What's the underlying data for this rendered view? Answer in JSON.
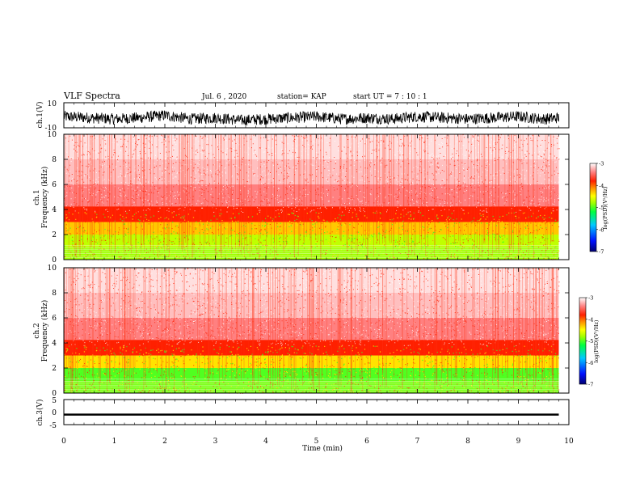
{
  "header": {
    "title": "VLF Spectra",
    "date": "Jul. 6 , 2020",
    "station": "station= KAP",
    "start_ut": "start UT =  7 : 10 : 1"
  },
  "chart_data": [
    {
      "type": "line",
      "panel": "ch1-waveform",
      "ylabel": "ch.1(V)",
      "ylim": [
        -10,
        10
      ],
      "yticks": [
        "10",
        "-10"
      ],
      "xlim": [
        0,
        10
      ],
      "x_min": [
        0,
        0.5,
        1,
        1.5,
        2,
        2.5,
        3,
        3.5,
        4,
        4.5,
        5,
        5.5,
        6,
        6.5,
        7,
        7.5,
        8,
        8.5,
        9,
        9.5,
        9.8
      ],
      "y_volts": [
        -1,
        -2,
        -3,
        -2,
        0,
        -3,
        -2,
        -4,
        -3,
        -2,
        -1,
        -3,
        -2,
        -3,
        -1,
        -2,
        -3,
        -2,
        -1,
        -3,
        -2
      ],
      "color": "#000000"
    },
    {
      "type": "heatmap",
      "panel": "ch1-spectrogram",
      "ylabel_channel": "ch.1",
      "ylabel": "Frequency (kHz)",
      "ylim": [
        0,
        10
      ],
      "yticks": [
        "0",
        "2",
        "4",
        "6",
        "8",
        "10"
      ],
      "xlim": [
        0,
        10
      ],
      "data_end_min": 9.8,
      "freq_bands_khz": [
        0.5,
        1.5,
        2.5,
        3.5,
        5,
        7,
        9
      ],
      "log_psd_levels": [
        -4.8,
        -4.7,
        -4.3,
        -3.8,
        -3.4,
        -3.2,
        -3.1
      ],
      "colorbar": {
        "label": "log(PSD)(V²/Hz)",
        "min": -7,
        "max": -3,
        "ticks": [
          "-3",
          "-4",
          "-5",
          "-6",
          "-7"
        ]
      }
    },
    {
      "type": "heatmap",
      "panel": "ch2-spectrogram",
      "ylabel_channel": "ch.2",
      "ylabel": "Frequency (kHz)",
      "ylim": [
        0,
        10
      ],
      "yticks": [
        "0",
        "2",
        "4",
        "6",
        "8",
        "10"
      ],
      "xlim": [
        0,
        10
      ],
      "data_end_min": 9.8,
      "freq_bands_khz": [
        0.5,
        1.5,
        2.5,
        3.5,
        5,
        7,
        9
      ],
      "log_psd_levels": [
        -4.9,
        -5.0,
        -4.4,
        -3.8,
        -3.4,
        -3.2,
        -3.1
      ],
      "colorbar": {
        "label": "log(PSD)(V²/Hz)",
        "min": -7,
        "max": -3,
        "ticks": [
          "-3",
          "-4",
          "-5",
          "-6",
          "-7"
        ]
      }
    },
    {
      "type": "line",
      "panel": "ch3-waveform",
      "ylabel": "ch.3(V)",
      "ylim": [
        -5,
        5
      ],
      "yticks": [
        "5",
        "0",
        "-5"
      ],
      "xlim": [
        0,
        10
      ],
      "y_volts": -1.0,
      "amplitude": 0.4,
      "color": "#000000"
    }
  ],
  "xaxis": {
    "label": "Time (min)",
    "ticks": [
      "0",
      "1",
      "2",
      "3",
      "4",
      "5",
      "6",
      "7",
      "8",
      "9",
      "10"
    ]
  }
}
